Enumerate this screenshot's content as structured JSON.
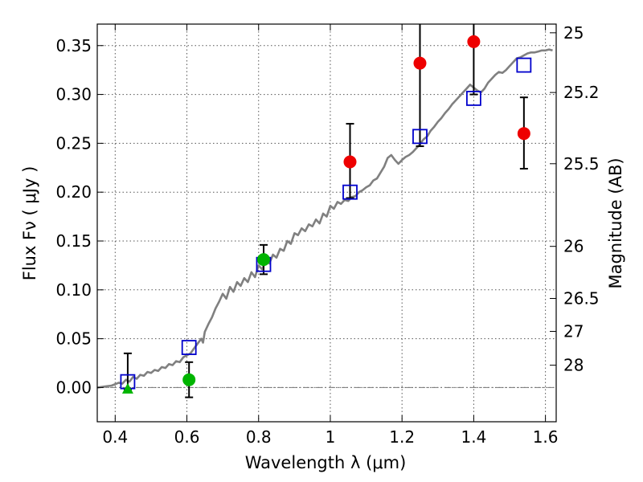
{
  "chart_data": {
    "type": "scatter",
    "xlabel": "Wavelength  λ (μm)",
    "ylabel": "Flux  Fν  ( μJy )",
    "ylabel_right": "Magnitude (AB)",
    "xlim": [
      0.35,
      1.63
    ],
    "ylim": [
      -0.035,
      0.372
    ],
    "grid": true,
    "x_ticks": [
      0.4,
      0.6,
      0.8,
      1.0,
      1.2,
      1.4,
      1.6
    ],
    "x_tick_labels": [
      "0.4",
      "0.6",
      "0.8",
      "1",
      "1.2",
      "1.4",
      "1.6"
    ],
    "y_ticks": [
      0.0,
      0.05,
      0.1,
      0.15,
      0.2,
      0.25,
      0.3,
      0.35
    ],
    "y_tick_labels": [
      "0.00",
      "0.05",
      "0.10",
      "0.15",
      "0.20",
      "0.25",
      "0.30",
      "0.35"
    ],
    "mag_ticks": [
      {
        "label": "25",
        "flux": 0.3631
      },
      {
        "label": "25.2",
        "flux": 0.302
      },
      {
        "label": "25.5",
        "flux": 0.2291
      },
      {
        "label": "26",
        "flux": 0.1445
      },
      {
        "label": "26.5",
        "flux": 0.0912
      },
      {
        "label": "27",
        "flux": 0.0575
      },
      {
        "label": "28",
        "flux": 0.0229
      }
    ],
    "zero_line_color": "#777777",
    "series": [
      {
        "kind": "model-spectrum",
        "color": "#808080",
        "x": [
          0.35,
          0.37,
          0.39,
          0.41,
          0.42,
          0.43,
          0.44,
          0.45,
          0.46,
          0.47,
          0.48,
          0.49,
          0.5,
          0.51,
          0.52,
          0.53,
          0.54,
          0.55,
          0.56,
          0.57,
          0.58,
          0.59,
          0.6,
          0.61,
          0.62,
          0.63,
          0.64,
          0.645,
          0.65,
          0.66,
          0.67,
          0.68,
          0.69,
          0.7,
          0.71,
          0.72,
          0.73,
          0.74,
          0.75,
          0.76,
          0.77,
          0.78,
          0.79,
          0.8,
          0.81,
          0.82,
          0.83,
          0.84,
          0.85,
          0.86,
          0.87,
          0.88,
          0.89,
          0.9,
          0.91,
          0.92,
          0.93,
          0.94,
          0.95,
          0.96,
          0.97,
          0.98,
          0.99,
          1.0,
          1.01,
          1.02,
          1.03,
          1.04,
          1.05,
          1.06,
          1.07,
          1.08,
          1.09,
          1.1,
          1.11,
          1.12,
          1.13,
          1.14,
          1.15,
          1.16,
          1.17,
          1.18,
          1.19,
          1.2,
          1.21,
          1.22,
          1.23,
          1.24,
          1.25,
          1.26,
          1.27,
          1.28,
          1.29,
          1.3,
          1.31,
          1.32,
          1.33,
          1.34,
          1.35,
          1.36,
          1.37,
          1.38,
          1.39,
          1.4,
          1.41,
          1.42,
          1.43,
          1.44,
          1.45,
          1.46,
          1.47,
          1.48,
          1.49,
          1.5,
          1.51,
          1.52,
          1.53,
          1.54,
          1.55,
          1.56,
          1.57,
          1.58,
          1.59,
          1.6,
          1.61,
          1.62
        ],
        "y": [
          0.0,
          0.001,
          0.002,
          0.005,
          0.004,
          0.008,
          0.006,
          0.011,
          0.009,
          0.013,
          0.012,
          0.016,
          0.015,
          0.018,
          0.017,
          0.021,
          0.02,
          0.024,
          0.023,
          0.027,
          0.026,
          0.031,
          0.033,
          0.035,
          0.04,
          0.045,
          0.05,
          0.046,
          0.057,
          0.065,
          0.072,
          0.081,
          0.088,
          0.096,
          0.091,
          0.103,
          0.098,
          0.108,
          0.104,
          0.112,
          0.108,
          0.118,
          0.113,
          0.125,
          0.121,
          0.13,
          0.127,
          0.136,
          0.133,
          0.142,
          0.14,
          0.15,
          0.147,
          0.158,
          0.156,
          0.163,
          0.16,
          0.167,
          0.165,
          0.172,
          0.168,
          0.178,
          0.175,
          0.186,
          0.183,
          0.19,
          0.188,
          0.192,
          0.191,
          0.195,
          0.196,
          0.2,
          0.202,
          0.205,
          0.207,
          0.212,
          0.214,
          0.22,
          0.226,
          0.235,
          0.238,
          0.233,
          0.229,
          0.233,
          0.236,
          0.238,
          0.241,
          0.245,
          0.249,
          0.254,
          0.257,
          0.263,
          0.267,
          0.272,
          0.276,
          0.281,
          0.285,
          0.29,
          0.294,
          0.298,
          0.302,
          0.306,
          0.31,
          0.307,
          0.304,
          0.302,
          0.306,
          0.312,
          0.316,
          0.32,
          0.323,
          0.322,
          0.325,
          0.329,
          0.333,
          0.337,
          0.338,
          0.34,
          0.342,
          0.343,
          0.343,
          0.344,
          0.345,
          0.345,
          0.346,
          0.345
        ]
      },
      {
        "kind": "model-photometry",
        "marker": "open-square",
        "color": "#0000cc",
        "x": [
          0.435,
          0.606,
          0.814,
          1.055,
          1.25,
          1.4,
          1.54
        ],
        "y": [
          0.006,
          0.041,
          0.126,
          0.2,
          0.257,
          0.296,
          0.33
        ]
      },
      {
        "kind": "observed",
        "marker": "filled-circle",
        "color": "#00b400",
        "x": [
          0.606,
          0.814
        ],
        "y": [
          0.008,
          0.131
        ],
        "err_low": [
          0.018,
          0.015
        ],
        "err_high": [
          0.018,
          0.015
        ]
      },
      {
        "kind": "observed-upper-limit",
        "marker": "filled-triangle",
        "color": "#00b400",
        "x": [
          0.435
        ],
        "y": [
          -0.002
        ],
        "err_low": [
          0.0
        ],
        "err_high": [
          0.037
        ]
      },
      {
        "kind": "observed",
        "marker": "filled-circle",
        "color": "#ee0000",
        "x": [
          1.055,
          1.25,
          1.4,
          1.54
        ],
        "y": [
          0.231,
          0.332,
          0.354,
          0.26
        ],
        "err_low": [
          0.037,
          0.085,
          0.054,
          0.036
        ],
        "err_high": [
          0.039,
          0.045,
          0.022,
          0.037
        ]
      }
    ]
  }
}
